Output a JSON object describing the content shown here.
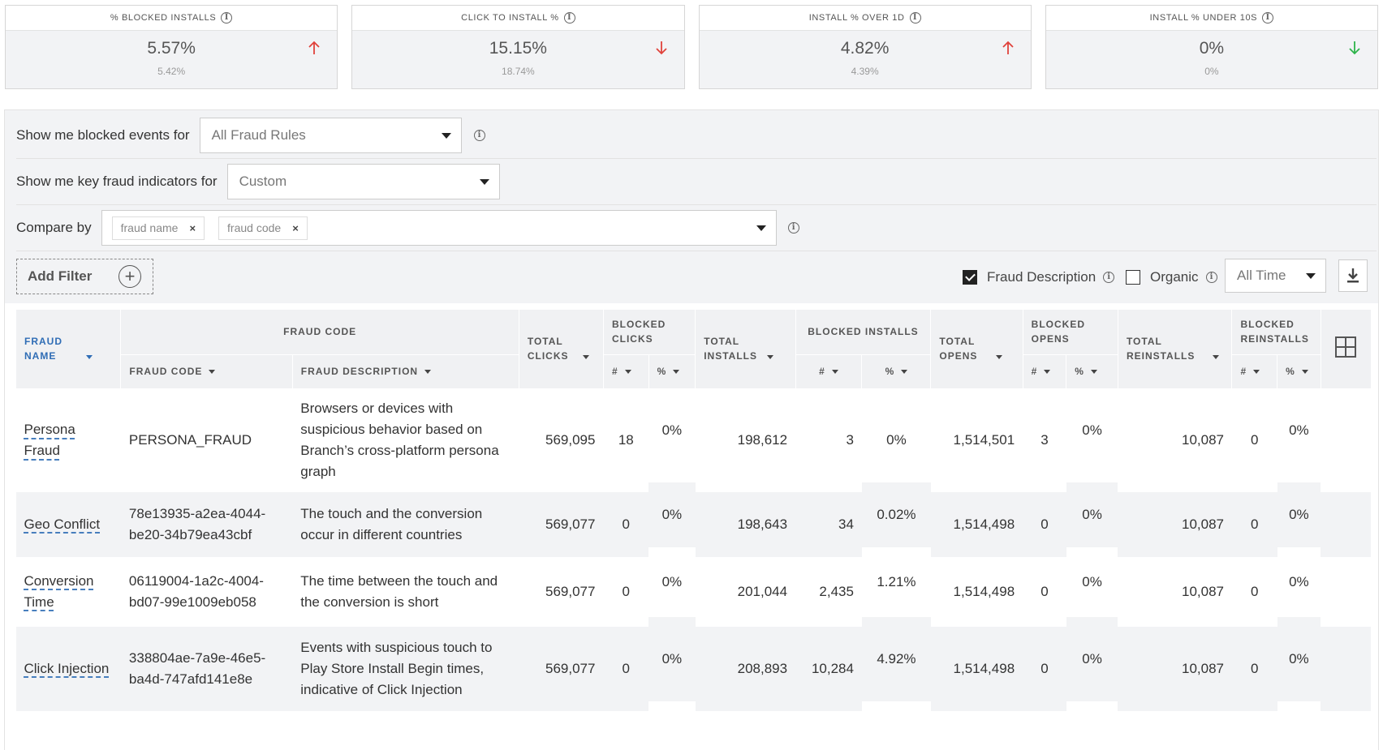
{
  "kpis": [
    {
      "label": "% BLOCKED INSTALLS",
      "value": "5.57%",
      "previous": "5.42%",
      "trend": "up",
      "color": "#e0423b"
    },
    {
      "label": "CLICK TO INSTALL %",
      "value": "15.15%",
      "previous": "18.74%",
      "trend": "down",
      "color": "#e0423b"
    },
    {
      "label": "INSTALL % OVER 1d",
      "value": "4.82%",
      "previous": "4.39%",
      "trend": "up",
      "color": "#e0423b"
    },
    {
      "label": "INSTALL % UNDER 10s",
      "value": "0%",
      "previous": "0%",
      "trend": "down",
      "color": "#2db34a"
    }
  ],
  "filters": {
    "blocked_events_label": "Show me blocked events for",
    "blocked_events_value": "All Fraud Rules",
    "key_indicators_label": "Show me key fraud indicators for",
    "key_indicators_value": "Custom",
    "compare_by_label": "Compare by",
    "compare_chips": [
      "fraud name",
      "fraud code"
    ],
    "chip_remove": "×",
    "add_filter": "Add Filter",
    "fraud_description_label": "Fraud Description",
    "organic_label": "Organic",
    "time_range": "All Time"
  },
  "table": {
    "headers": {
      "fraud_name": "FRAUD NAME",
      "fraud_code_group": "FRAUD CODE",
      "fraud_code": "FRAUD CODE",
      "fraud_description": "FRAUD DESCRIPTION",
      "total_clicks": "TOTAL CLICKS",
      "blocked_clicks": "BLOCKED CLICKS",
      "total_installs": "TOTAL INSTALLS",
      "blocked_installs": "BLOCKED INSTALLS",
      "total_opens": "TOTAL OPENS",
      "blocked_opens": "BLOCKED OPENS",
      "total_reinstalls": "TOTAL REINSTALLS",
      "blocked_reinstalls": "BLOCKED REINSTALLS",
      "count": "#",
      "percent": "%"
    },
    "rows": [
      {
        "name": "Persona Fraud",
        "code": "PERSONA_FRAUD",
        "description": "Browsers or devices with suspicious behavior based on Branch’s cross-platform persona graph",
        "total_clicks": "569,095",
        "blocked_clicks": "18",
        "blocked_clicks_pct": "0%",
        "total_installs": "198,612",
        "blocked_installs": "3",
        "blocked_installs_pct": "0%",
        "total_opens": "1,514,501",
        "blocked_opens": "3",
        "blocked_opens_pct": "0%",
        "total_reinstalls": "10,087",
        "blocked_reinstalls": "0",
        "blocked_reinstalls_pct": "0%"
      },
      {
        "name": "Geo Conflict",
        "code": "78e13935-a2ea-4044-be20-34b79ea43cbf",
        "description": "The touch and the conversion occur in different countries",
        "total_clicks": "569,077",
        "blocked_clicks": "0",
        "blocked_clicks_pct": "0%",
        "total_installs": "198,643",
        "blocked_installs": "34",
        "blocked_installs_pct": "0.02%",
        "total_opens": "1,514,498",
        "blocked_opens": "0",
        "blocked_opens_pct": "0%",
        "total_reinstalls": "10,087",
        "blocked_reinstalls": "0",
        "blocked_reinstalls_pct": "0%"
      },
      {
        "name": "Conversion Time",
        "code": "06119004-1a2c-4004-bd07-99e1009eb058",
        "description": "The time between the touch and the conversion is short",
        "total_clicks": "569,077",
        "blocked_clicks": "0",
        "blocked_clicks_pct": "0%",
        "total_installs": "201,044",
        "blocked_installs": "2,435",
        "blocked_installs_pct": "1.21%",
        "total_opens": "1,514,498",
        "blocked_opens": "0",
        "blocked_opens_pct": "0%",
        "total_reinstalls": "10,087",
        "blocked_reinstalls": "0",
        "blocked_reinstalls_pct": "0%"
      },
      {
        "name": "Click Injection",
        "code": "338804ae-7a9e-46e5-ba4d-747afd141e8e",
        "description": "Events with suspicious touch to Play Store Install Begin times, indicative of Click Injection",
        "total_clicks": "569,077",
        "blocked_clicks": "0",
        "blocked_clicks_pct": "0%",
        "total_installs": "208,893",
        "blocked_installs": "10,284",
        "blocked_installs_pct": "4.92%",
        "total_opens": "1,514,498",
        "blocked_opens": "0",
        "blocked_opens_pct": "0%",
        "total_reinstalls": "10,087",
        "blocked_reinstalls": "0",
        "blocked_reinstalls_pct": "0%"
      }
    ]
  }
}
